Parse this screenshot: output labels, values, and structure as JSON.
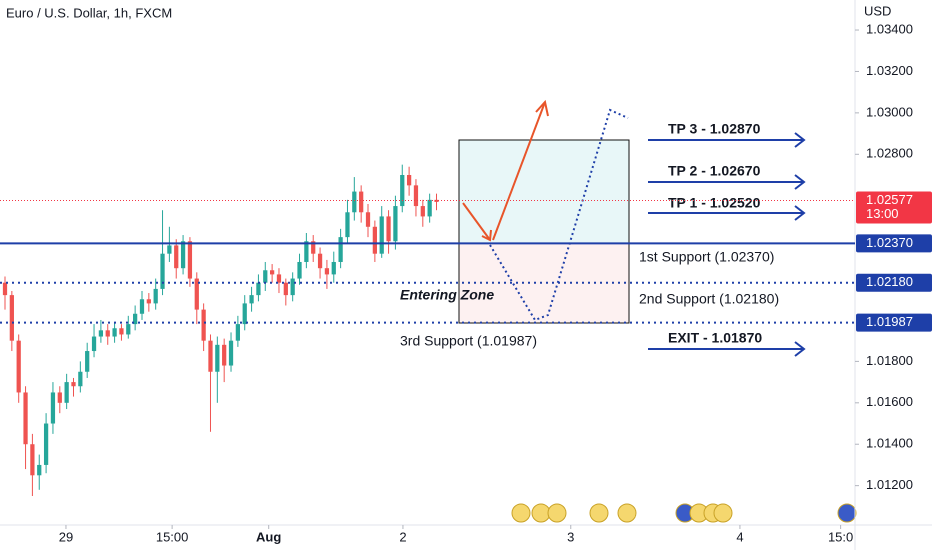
{
  "chart_data": {
    "type": "candlestick",
    "title": "Euro / U.S. Dollar, 1h, FXCM",
    "y_axis_label": "USD",
    "open": [
      1.0218,
      1.0212,
      1.019,
      1.0165,
      1.014,
      1.0125,
      1.013,
      1.015,
      1.0165,
      1.016,
      1.017,
      1.0168,
      1.0175,
      1.0185,
      1.0192,
      1.0195,
      1.0192,
      1.0196,
      1.0193,
      1.0198,
      1.0203,
      1.021,
      1.0208,
      1.0215,
      1.0232,
      1.0236,
      1.0225,
      1.0238,
      1.022,
      1.0205,
      1.019,
      1.0175,
      1.0188,
      1.0178,
      1.019,
      1.0198,
      1.0208,
      1.0212,
      1.0218,
      1.0224,
      1.0222,
      1.0218,
      1.0212,
      1.022,
      1.0228,
      1.0238,
      1.0232,
      1.0225,
      1.0222,
      1.0228,
      1.024,
      1.0252,
      1.0262,
      1.0252,
      1.0245,
      1.0232,
      1.025,
      1.0238,
      1.0255,
      1.027,
      1.0265,
      1.0255,
      1.025,
      1.0258
    ],
    "high": [
      1.0221,
      1.0214,
      1.0193,
      1.0168,
      1.0145,
      1.0135,
      1.0155,
      1.017,
      1.0168,
      1.0174,
      1.0172,
      1.018,
      1.0189,
      1.0198,
      1.02,
      1.0198,
      1.0199,
      1.0198,
      1.0202,
      1.0207,
      1.0214,
      1.0213,
      1.022,
      1.0253,
      1.0245,
      1.0239,
      1.0241,
      1.024,
      1.0223,
      1.0208,
      1.0193,
      1.0192,
      1.0191,
      1.0194,
      1.0202,
      1.0212,
      1.0216,
      1.0222,
      1.0228,
      1.0227,
      1.0225,
      1.022,
      1.0223,
      1.0232,
      1.0242,
      1.0241,
      1.0235,
      1.0229,
      1.0233,
      1.0244,
      1.0258,
      1.0269,
      1.0265,
      1.0256,
      1.0248,
      1.0255,
      1.0253,
      1.026,
      1.0275,
      1.0274,
      1.0268,
      1.0258,
      1.0261,
      1.0261
    ],
    "low": [
      1.0205,
      1.0185,
      1.016,
      1.0128,
      1.0115,
      1.0118,
      1.0126,
      1.0145,
      1.0155,
      1.0157,
      1.0163,
      1.0165,
      1.0172,
      1.0182,
      1.0189,
      1.0188,
      1.0189,
      1.019,
      1.0191,
      1.0195,
      1.02,
      1.0204,
      1.0205,
      1.0212,
      1.0228,
      1.022,
      1.0222,
      1.0216,
      1.0198,
      1.0185,
      1.0146,
      1.016,
      1.017,
      1.0175,
      1.0187,
      1.0195,
      1.0204,
      1.0209,
      1.0214,
      1.0218,
      1.0213,
      1.0207,
      1.0209,
      1.0217,
      1.0225,
      1.0228,
      1.022,
      1.0215,
      1.0218,
      1.0225,
      1.0237,
      1.0248,
      1.0247,
      1.024,
      1.0228,
      1.023,
      1.0232,
      1.0234,
      1.0252,
      1.026,
      1.025,
      1.0245,
      1.0247,
      1.0253
    ],
    "close": [
      1.0212,
      1.019,
      1.0165,
      1.014,
      1.0125,
      1.013,
      1.015,
      1.0165,
      1.016,
      1.017,
      1.0168,
      1.0175,
      1.0185,
      1.0192,
      1.0195,
      1.0192,
      1.0196,
      1.0193,
      1.0198,
      1.0203,
      1.021,
      1.0208,
      1.0215,
      1.0232,
      1.0236,
      1.0225,
      1.0238,
      1.022,
      1.0205,
      1.019,
      1.0175,
      1.0188,
      1.0178,
      1.019,
      1.0198,
      1.0208,
      1.0212,
      1.0218,
      1.0224,
      1.0222,
      1.0218,
      1.0212,
      1.022,
      1.0228,
      1.0238,
      1.0232,
      1.0225,
      1.0222,
      1.0228,
      1.024,
      1.0252,
      1.0262,
      1.0252,
      1.0245,
      1.0232,
      1.025,
      1.0238,
      1.0255,
      1.027,
      1.0265,
      1.0255,
      1.025,
      1.0258,
      1.0257
    ],
    "up_color": "#26a69a",
    "down_color": "#ef5350",
    "xlim": [
      -0.73,
      124.1
    ],
    "xticks": [
      {
        "value": 8.9,
        "label": "29"
      },
      {
        "value": 24.4,
        "label": "15:00"
      },
      {
        "value": 38.5,
        "label": "Aug"
      },
      {
        "value": 58.1,
        "label": "2"
      },
      {
        "value": 82.6,
        "label": "3"
      },
      {
        "value": 107.3,
        "label": "4"
      },
      {
        "value": 122.0,
        "label": "15:0"
      }
    ],
    "ylim": [
      1.0101,
      1.03545
    ],
    "yticks": [
      {
        "value": 1.034,
        "label": "1.03400"
      },
      {
        "value": 1.032,
        "label": "1.03200"
      },
      {
        "value": 1.03,
        "label": "1.03000"
      },
      {
        "value": 1.028,
        "label": "1.02800"
      },
      {
        "value": 1.018,
        "label": "1.01800"
      },
      {
        "value": 1.016,
        "label": "1.01600"
      },
      {
        "value": 1.014,
        "label": "1.01400"
      },
      {
        "value": 1.012,
        "label": "1.01200"
      }
    ],
    "price_lines": [
      {
        "value": 1.0237,
        "label": "1.02370",
        "color": "#1e3fa8",
        "style": "solid"
      },
      {
        "value": 1.0218,
        "label": "1.02180",
        "color": "#1e3fa8",
        "style": "dotted"
      },
      {
        "value": 1.01987,
        "label": "1.01987",
        "color": "#1e3fa8",
        "style": "dotted"
      }
    ],
    "current_price": {
      "value": 1.02577,
      "label": "1.02577",
      "time": "13:00",
      "color": "#f23645"
    },
    "annotations": {
      "tp3": "TP 3 - 1.02870",
      "tp2": "TP 2 - 1.02670",
      "tp1": "TP 1 - 1.02520",
      "exit": "EXIT - 1.01870",
      "support1": "1st Support (1.02370)",
      "support2": "2nd Support (1.02180)",
      "support3": "3rd Support (1.01987)",
      "zone": "Entering Zone"
    }
  }
}
